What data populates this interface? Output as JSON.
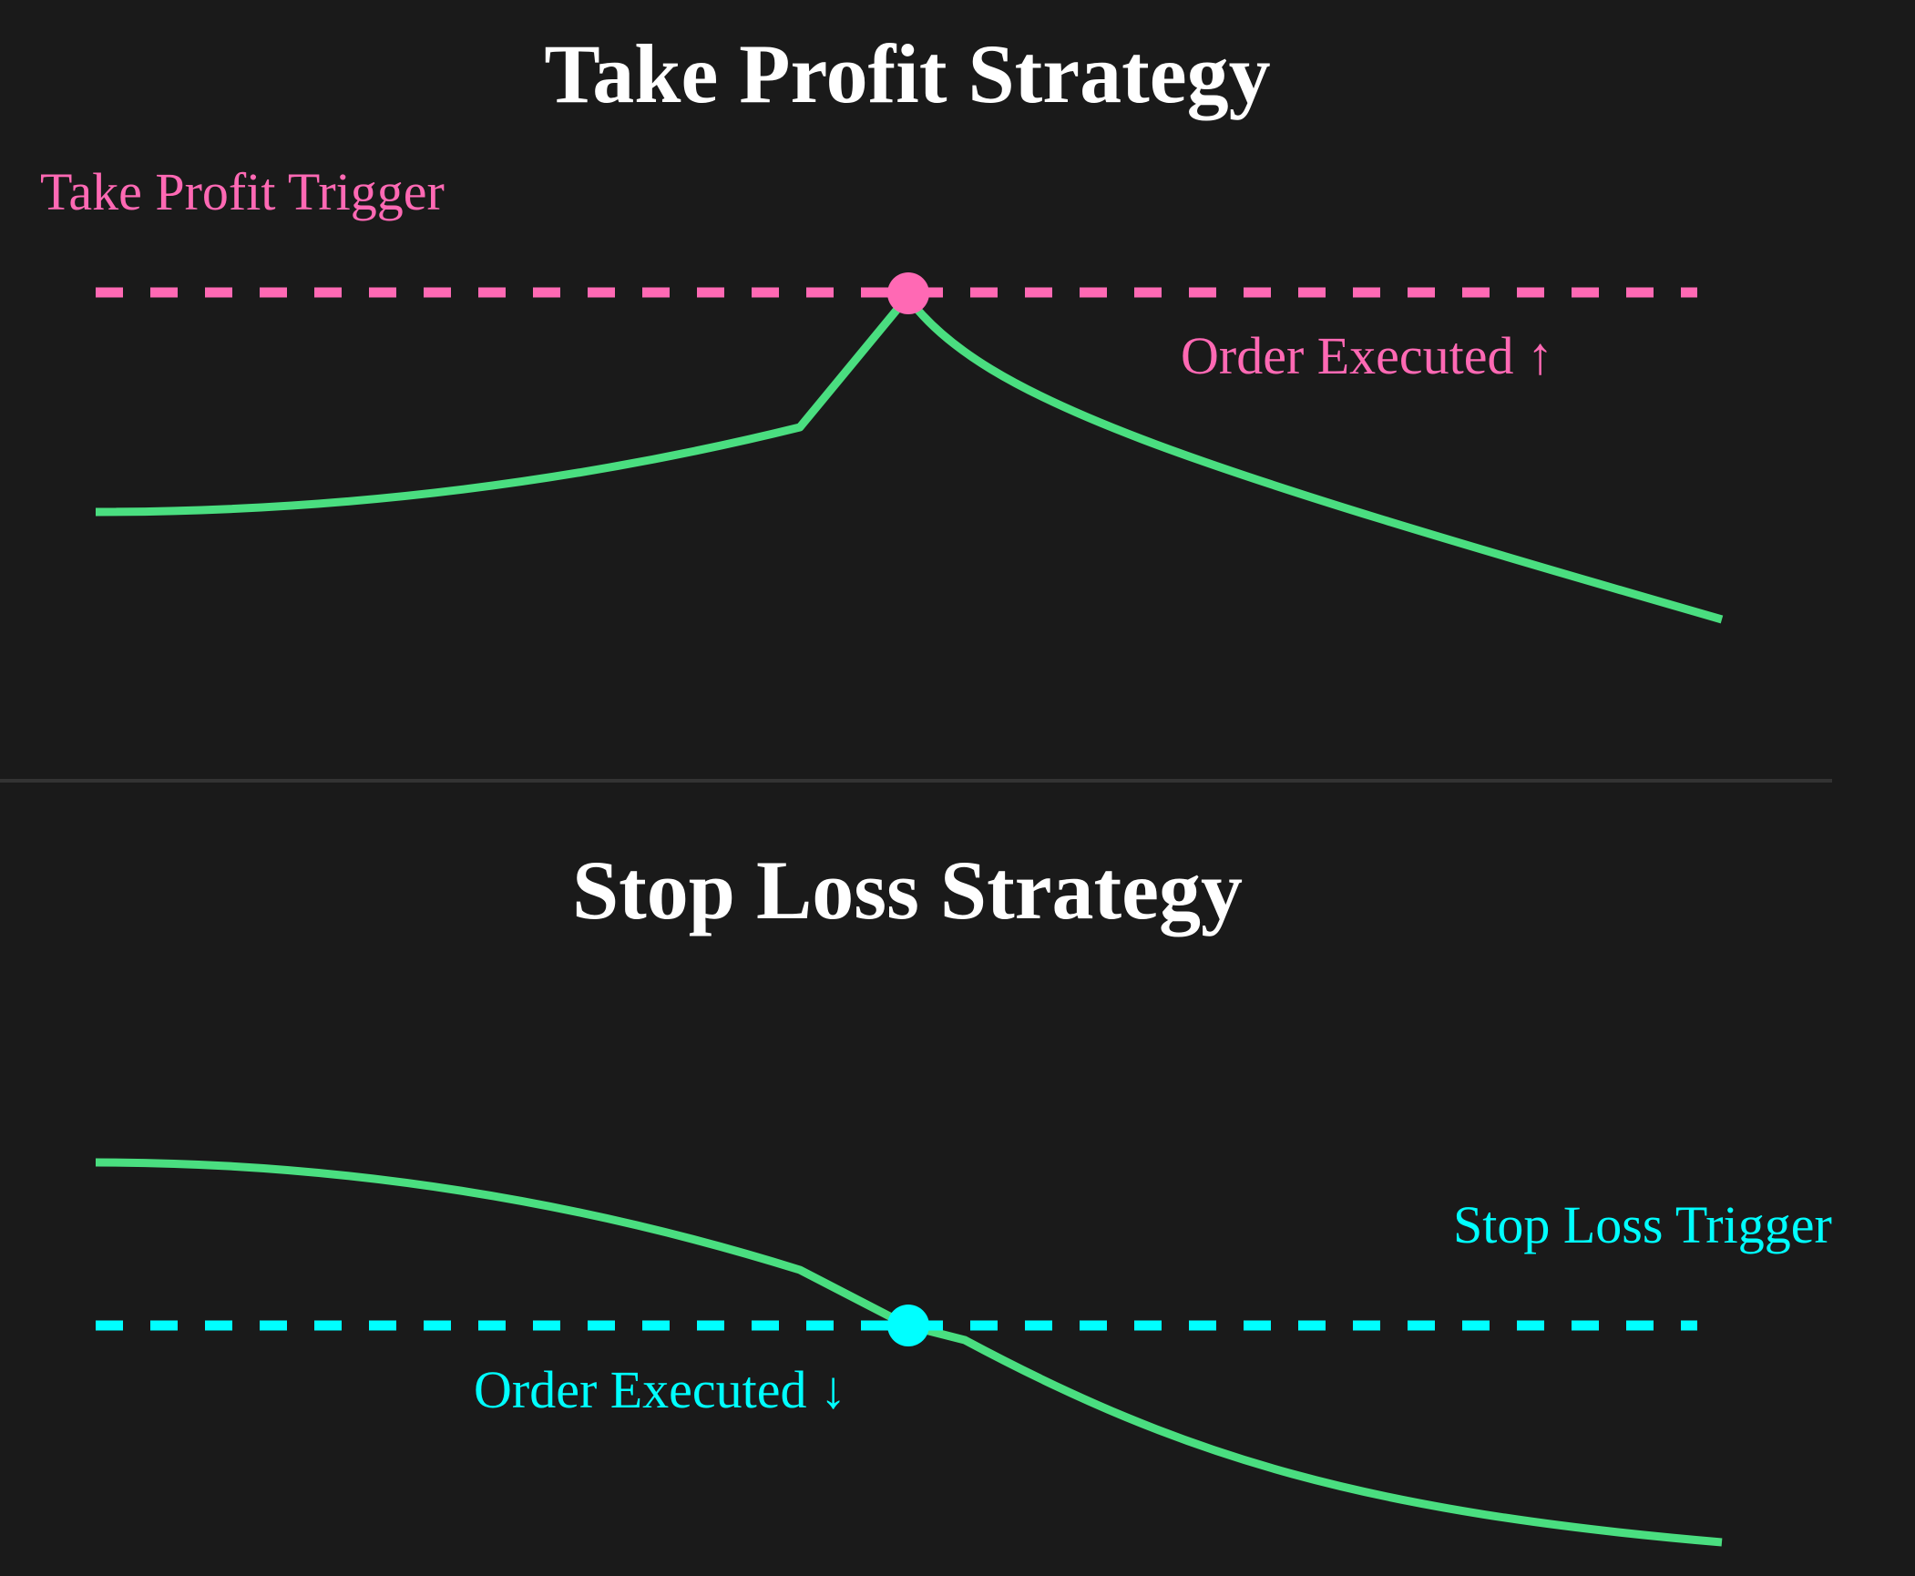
{
  "colors": {
    "background": "#1a1a1a",
    "price_line": "#4ade80",
    "take_profit": "#ff69b4",
    "stop_loss": "#00ffff",
    "divider": "#333333"
  },
  "take_profit": {
    "title": "Take Profit Strategy",
    "trigger_label": "Take Profit Trigger",
    "executed_label": "Order Executed ↑"
  },
  "stop_loss": {
    "title": "Stop Loss Strategy",
    "trigger_label": "Stop Loss Trigger",
    "executed_label": "Order Executed ↓"
  }
}
